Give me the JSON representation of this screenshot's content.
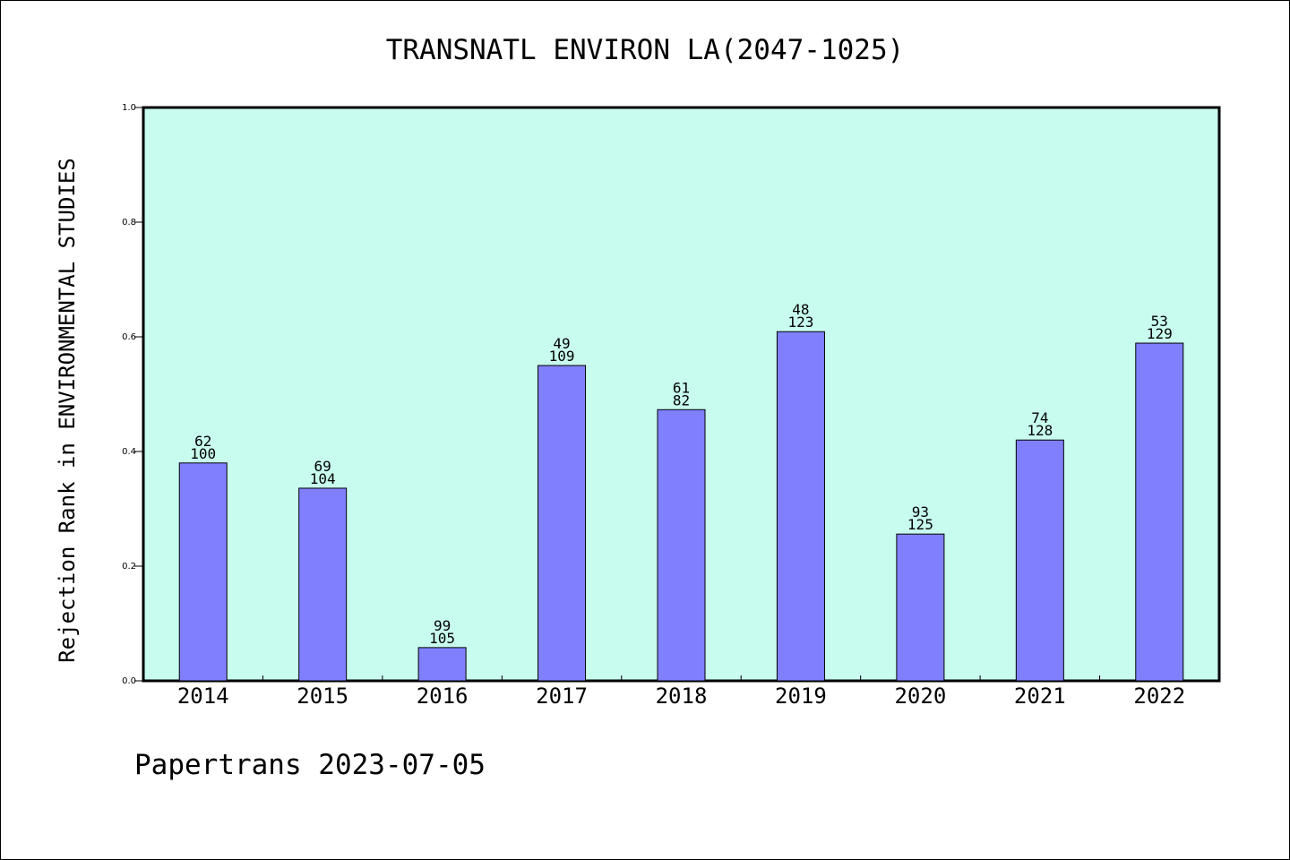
{
  "chart_data": {
    "type": "bar",
    "title": "TRANSNATL ENVIRON LA(2047-1025)",
    "xlabel": "",
    "ylabel": "Rejection Rank in ENVIRONMENTAL STUDIES",
    "ylim": [
      0,
      1.0
    ],
    "yticks": [
      "0.0",
      "0.2",
      "0.4",
      "0.6",
      "0.8",
      "1.0"
    ],
    "grid": false,
    "categories": [
      "2014",
      "2015",
      "2016",
      "2017",
      "2018",
      "2019",
      "2020",
      "2021",
      "2022"
    ],
    "values": [
      0.38,
      0.336,
      0.058,
      0.55,
      0.473,
      0.609,
      0.256,
      0.42,
      0.589
    ],
    "label_top": [
      "62",
      "69",
      "99",
      "49",
      "61",
      "48",
      "93",
      "74",
      "53"
    ],
    "label_bottom": [
      "100",
      "104",
      "105",
      "109",
      "82",
      "123",
      "125",
      "128",
      "129"
    ],
    "colors": {
      "plot_background": "#c8fcee",
      "bar_fill": "#8080ff",
      "bar_stroke": "#000000"
    }
  },
  "footer": {
    "text": "Papertrans 2023-07-05"
  }
}
